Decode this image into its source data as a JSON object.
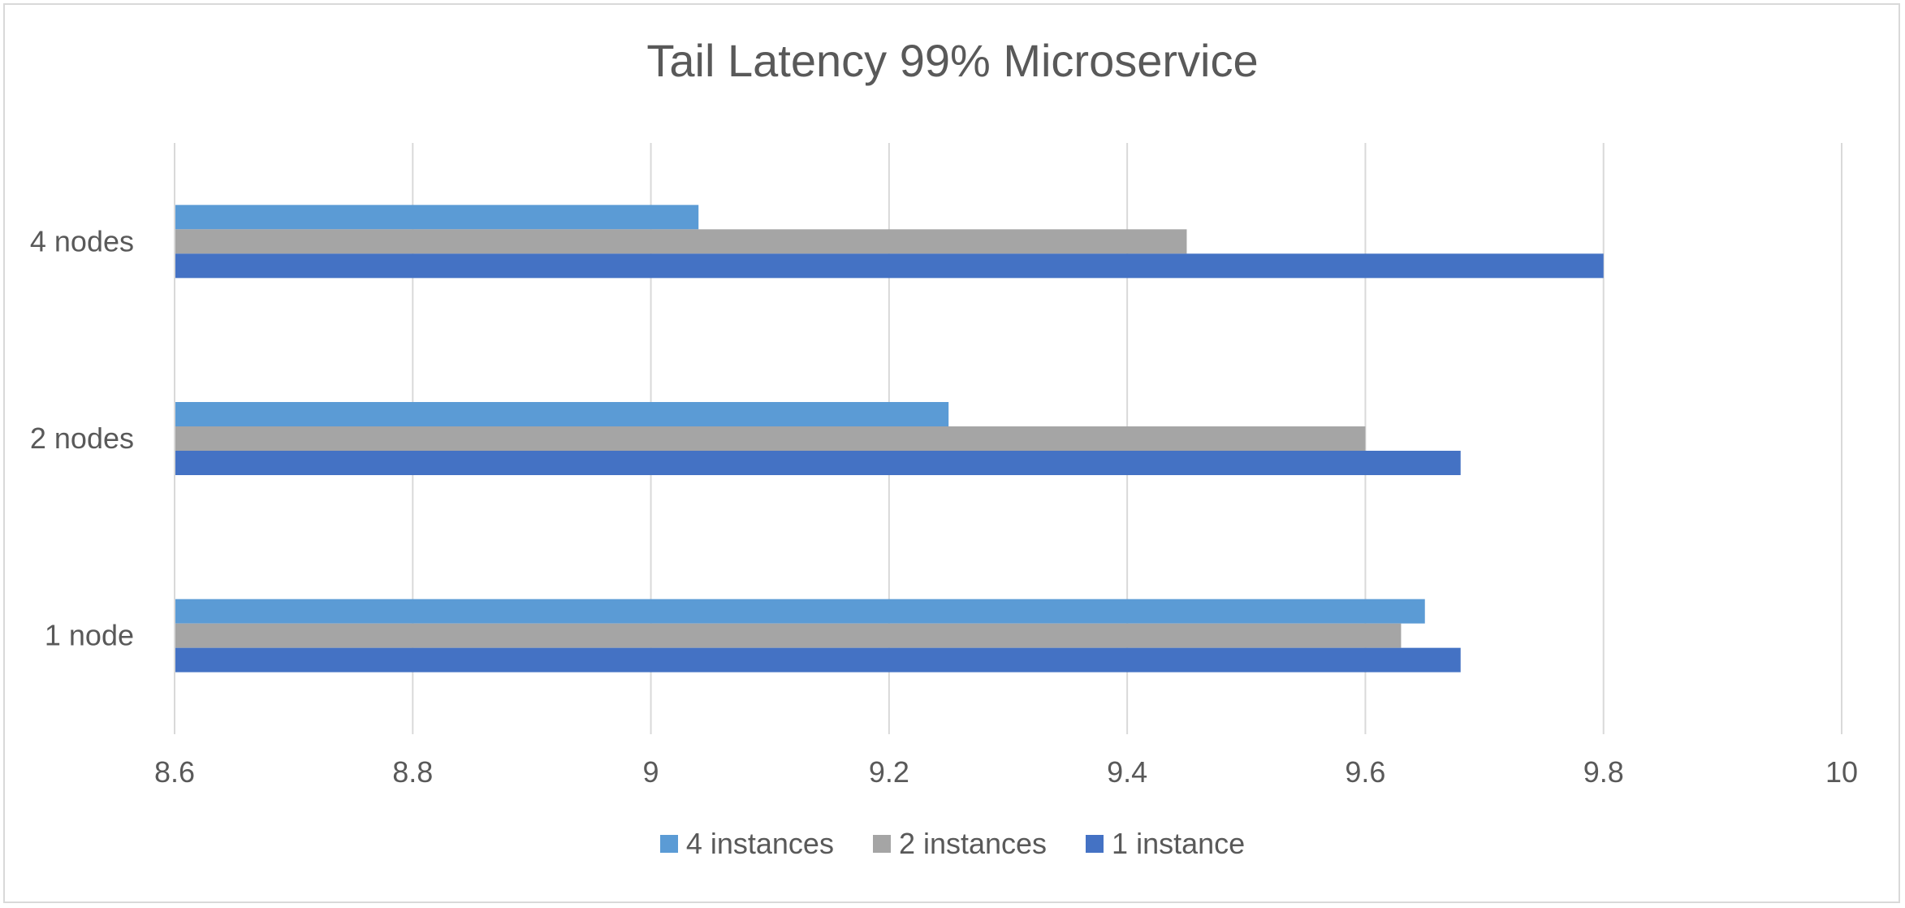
{
  "chart_data": {
    "type": "bar",
    "orientation": "horizontal",
    "title": "Tail Latency 99% Microservice",
    "xlabel": "",
    "ylabel": "",
    "categories": [
      "1 node",
      "2 nodes",
      "4 nodes"
    ],
    "series": [
      {
        "name": "4 instances",
        "color": "#5b9bd5",
        "values": [
          9.65,
          9.25,
          9.04
        ]
      },
      {
        "name": "2 instances",
        "color": "#a5a5a5",
        "values": [
          9.63,
          9.6,
          9.45
        ]
      },
      {
        "name": "1 instance",
        "color": "#4472c4",
        "values": [
          9.68,
          9.68,
          9.8
        ]
      }
    ],
    "xlim": [
      8.6,
      10
    ],
    "xticks": [
      "8.6",
      "8.8",
      "9",
      "9.2",
      "9.4",
      "9.6",
      "9.8",
      "10"
    ],
    "grid": true,
    "legend_position": "bottom"
  }
}
